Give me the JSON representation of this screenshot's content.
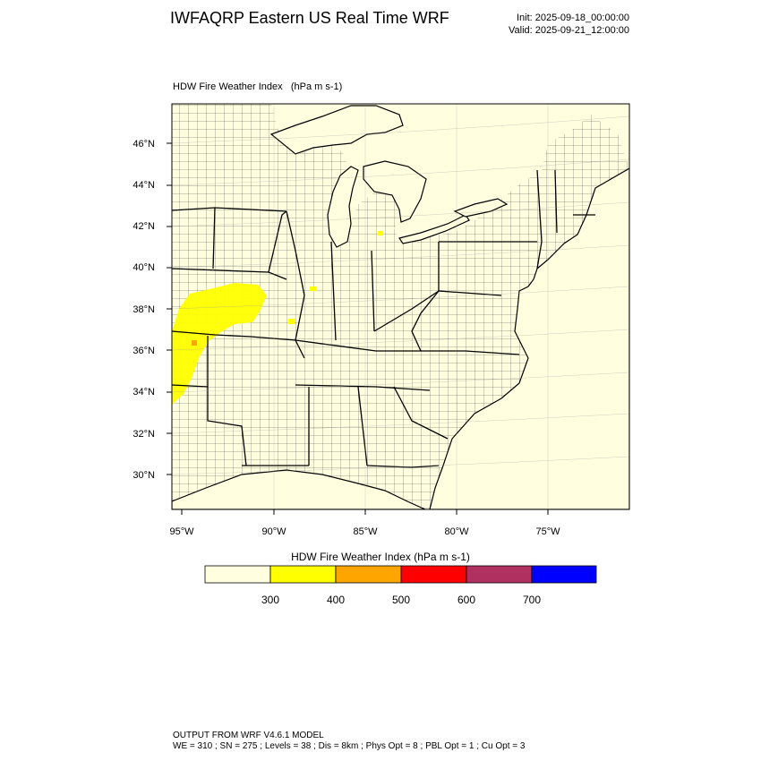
{
  "header": {
    "title": "IWFAQRP Eastern US Real Time WRF",
    "init": "Init: 2025-09-18_00:00:00",
    "valid": "Valid: 2025-09-21_12:00:00"
  },
  "map": {
    "subtitle": "HDW Fire Weather Index   (hPa m s-1)",
    "lat_labels": [
      "46°N",
      "44°N",
      "42°N",
      "40°N",
      "38°N",
      "36°N",
      "34°N",
      "32°N",
      "30°N"
    ],
    "lon_labels": [
      "95°W",
      "90°W",
      "85°W",
      "80°W",
      "75°W"
    ],
    "background_color": "#ffffe0",
    "boundary_color": "#000000"
  },
  "colorbar": {
    "title": "HDW Fire Weather Index (hPa m s-1)",
    "colors": [
      "#ffffe0",
      "#ffff00",
      "#ffa500",
      "#ff0000",
      "#b03060",
      "#0000ff"
    ],
    "ticks": [
      "300",
      "400",
      "500",
      "600",
      "700"
    ]
  },
  "footer": {
    "line1": "OUTPUT FROM WRF V4.6.1 MODEL",
    "line2": "WE = 310 ; SN = 275 ; Levels = 38 ; Dis = 8km ; Phys Opt = 8 ; PBL Opt = 1 ; Cu Opt = 3"
  }
}
